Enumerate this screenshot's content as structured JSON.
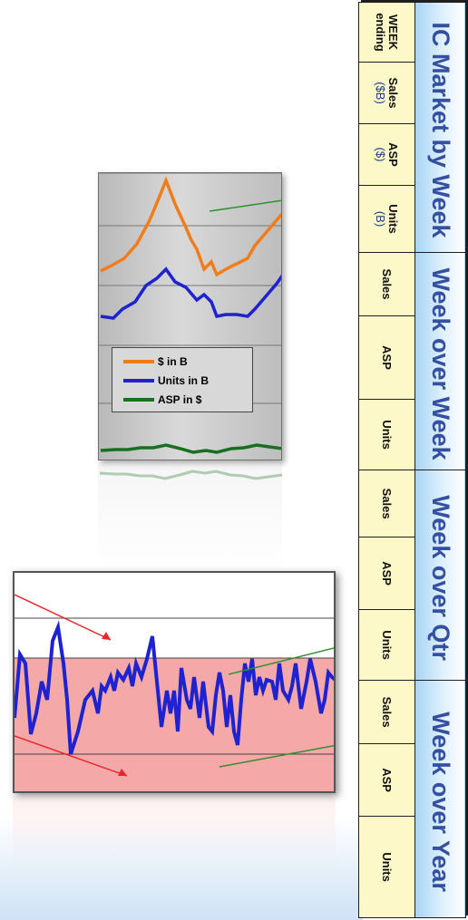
{
  "table": {
    "groups": [
      {
        "title": "IC Market by Week"
      },
      {
        "title": "Week over Week"
      },
      {
        "title": "Week over Qtr"
      },
      {
        "title": "Week over Year"
      }
    ],
    "cells": [
      {
        "label": "WEEK",
        "unit": "ending"
      },
      {
        "label": "Sales",
        "unit": "($B)"
      },
      {
        "label": "ASP",
        "unit": "($)"
      },
      {
        "label": "Units",
        "unit": "(B)"
      },
      {
        "label": "Sales",
        "unit": ""
      },
      {
        "label": "ASP",
        "unit": ""
      },
      {
        "label": "Units",
        "unit": ""
      },
      {
        "label": "Sales",
        "unit": ""
      },
      {
        "label": "ASP",
        "unit": ""
      },
      {
        "label": "Units",
        "unit": ""
      },
      {
        "label": "Sales",
        "unit": ""
      },
      {
        "label": "ASP",
        "unit": ""
      },
      {
        "label": "Units",
        "unit": ""
      }
    ]
  },
  "top_chart": {
    "legend": [
      {
        "label": "$ in B",
        "color": "#f07d1a"
      },
      {
        "label": "Units in B",
        "color": "#1e22cf"
      },
      {
        "label": "ASP in $",
        "color": "#17701f"
      }
    ]
  },
  "colors": {
    "header_text": "#3550a0",
    "header_bg": "#a6d4f6",
    "subheader_bg": "#fdf8c8",
    "band": "#f4a8a8",
    "units_line": "#1e22cf",
    "trend_red": "#e8252a",
    "trend_green": "#2f8f2f"
  }
}
